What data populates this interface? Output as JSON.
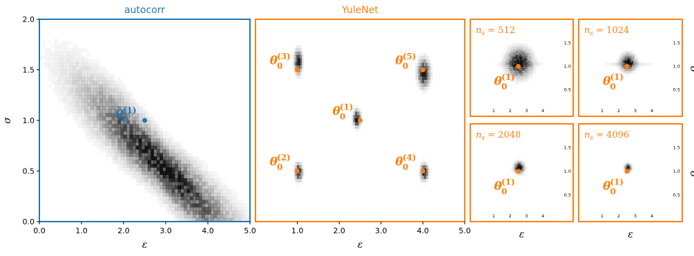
{
  "colors": {
    "autocorr": "#1f77b4",
    "yulenet": "#ff7f0e",
    "density": "#000000"
  },
  "chart_data": [
    {
      "type": "heatmap",
      "title": "autocorr",
      "xlabel": "ε",
      "ylabel": "σ",
      "xlim": [
        0,
        5
      ],
      "ylim": [
        0,
        2
      ],
      "xticks": [
        "0.0",
        "1.0",
        "2.0",
        "3.0",
        "4.0",
        "5.0"
      ],
      "yticks": [
        "0.0",
        "0.5",
        "1.0",
        "1.5",
        "2.0"
      ],
      "true_point": {
        "x": 2.5,
        "y": 1.0,
        "label": "θ",
        "sup": "(1)",
        "sub": "0"
      },
      "density_shape": {
        "center": [
          2.9,
          0.55
        ],
        "spread_major": 1.15,
        "spread_minor": 0.13,
        "angle_deg": -22
      }
    },
    {
      "type": "heatmap",
      "title": "YuleNet",
      "xlabel": "ε",
      "xlim": [
        0,
        5
      ],
      "ylim": [
        0,
        2
      ],
      "xticks": [
        "1.0",
        "2.0",
        "3.0",
        "4.0",
        "5.0"
      ],
      "true_points": [
        {
          "x": 1.0,
          "y": 1.5,
          "sup": "(3)",
          "est": [
            1.02,
            1.58
          ]
        },
        {
          "x": 4.0,
          "y": 1.5,
          "sup": "(5)",
          "est": [
            4.02,
            1.47
          ]
        },
        {
          "x": 2.5,
          "y": 1.0,
          "sup": "(1)",
          "est": [
            2.42,
            1.02
          ]
        },
        {
          "x": 1.0,
          "y": 0.5,
          "sup": "(2)",
          "est": [
            1.03,
            0.49
          ]
        },
        {
          "x": 4.0,
          "y": 0.5,
          "sup": "(4)",
          "est": [
            4.03,
            0.49
          ]
        }
      ]
    },
    {
      "type": "heatmap",
      "n_s_label": "512",
      "xlabel": "",
      "xlim": [
        0.5,
        5
      ],
      "ylim": [
        0.2,
        1.8
      ],
      "xticks": [
        "1",
        "2",
        "3",
        "4"
      ],
      "yticks": [
        "0.5",
        "1.0",
        "1.5"
      ],
      "true_point": {
        "x": 2.5,
        "y": 1.0,
        "sup": "(1)"
      },
      "spread": 0.3
    },
    {
      "type": "heatmap",
      "n_s_label": "1024",
      "xlabel": "",
      "ylabel": "σ",
      "xlim": [
        0.5,
        5
      ],
      "ylim": [
        0.2,
        1.8
      ],
      "xticks": [
        "1",
        "2",
        "3",
        "4"
      ],
      "yticks": [
        "0.5",
        "1.0",
        "1.5"
      ],
      "true_point": {
        "x": 2.5,
        "y": 1.0,
        "sup": "(1)"
      },
      "spread": 0.18
    },
    {
      "type": "heatmap",
      "n_s_label": "2048",
      "xlabel": "ε",
      "xlim": [
        0.5,
        5
      ],
      "ylim": [
        0.2,
        1.8
      ],
      "xticks": [
        "1",
        "2",
        "3",
        "4"
      ],
      "yticks": [
        "0.5",
        "1.0",
        "1.5"
      ],
      "true_point": {
        "x": 2.5,
        "y": 1.0,
        "sup": "(1)"
      },
      "spread": 0.12
    },
    {
      "type": "heatmap",
      "n_s_label": "4096",
      "xlabel": "ε",
      "ylabel": "σ",
      "xlim": [
        0.5,
        5
      ],
      "ylim": [
        0.2,
        1.8
      ],
      "xticks": [
        "1",
        "2",
        "3",
        "4"
      ],
      "yticks": [
        "0.5",
        "1.0",
        "1.5"
      ],
      "true_point": {
        "x": 2.5,
        "y": 1.0,
        "sup": "(1)"
      },
      "spread": 0.08
    }
  ]
}
